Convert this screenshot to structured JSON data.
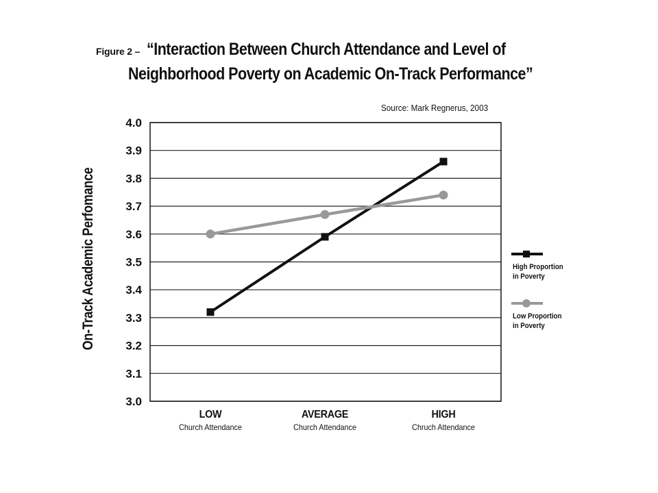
{
  "figure_label": "Figure 2 –",
  "title_line1": "“Interaction Between Church Attendance and Level of",
  "title_line2": "Neighborhood Poverty on Academic On-Track Performance”",
  "source": "Source:  Mark Regnerus, 2003",
  "chart_data": {
    "type": "line",
    "ylabel": "On-Track Academic Perfomance",
    "xlabel": "",
    "ylim": [
      3.0,
      4.0
    ],
    "yticks": [
      "4.0",
      "3.9",
      "3.8",
      "3.7",
      "3.6",
      "3.5",
      "3.4",
      "3.3",
      "3.2",
      "3.1",
      "3.0"
    ],
    "grid": "horizontal",
    "legend_position": "right",
    "categories": [
      {
        "main": "LOW",
        "sub": "Church Attendance"
      },
      {
        "main": "AVERAGE",
        "sub": "Church Attendance"
      },
      {
        "main": "HIGH",
        "sub": "Chruch Attendance"
      }
    ],
    "series": [
      {
        "name_line1": "High Proportion",
        "name_line2": "in Poverty",
        "color": "#111111",
        "marker": "square",
        "values": [
          3.32,
          3.59,
          3.86
        ]
      },
      {
        "name_line1": "Low Proportion",
        "name_line2": "in Poverty",
        "color": "#999999",
        "marker": "circle",
        "values": [
          3.6,
          3.67,
          3.74
        ]
      }
    ]
  }
}
